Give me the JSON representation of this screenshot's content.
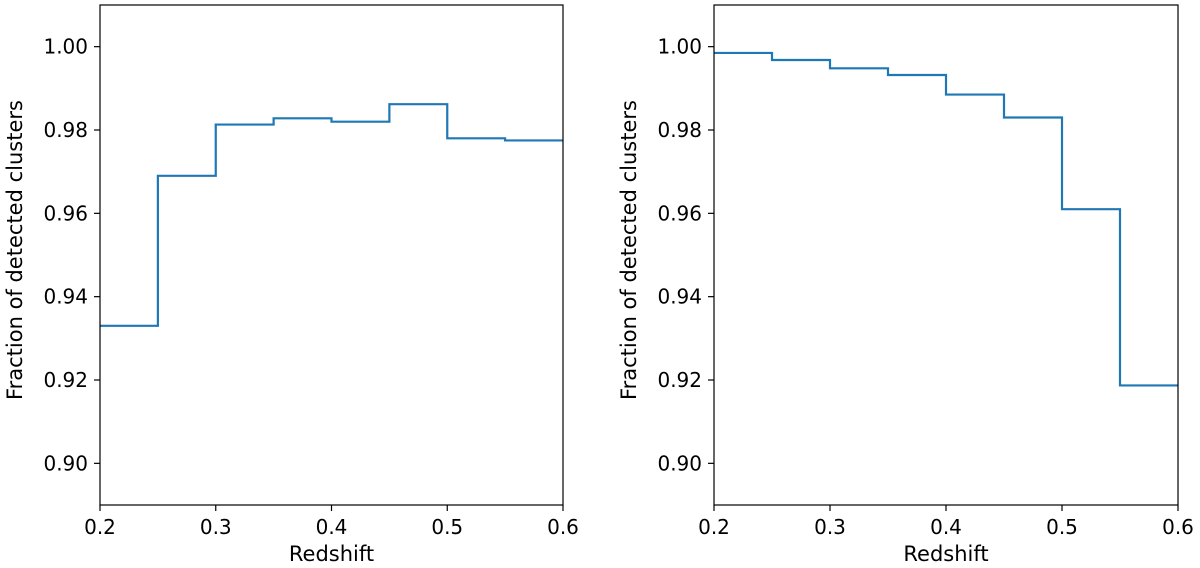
{
  "chart_data": [
    {
      "type": "line",
      "drawstyle": "steps-post",
      "title": "",
      "xlabel": "Redshift",
      "ylabel": "Fraction of detected clusters",
      "xlim": [
        0.2,
        0.6
      ],
      "ylim": [
        0.89,
        1.01
      ],
      "xticks": [
        0.2,
        0.3,
        0.4,
        0.5,
        0.6
      ],
      "xtick_labels": [
        "0.2",
        "0.3",
        "0.4",
        "0.5",
        "0.6"
      ],
      "yticks": [
        0.9,
        0.92,
        0.94,
        0.96,
        0.98,
        1.0
      ],
      "ytick_labels": [
        "0.90",
        "0.92",
        "0.94",
        "0.96",
        "0.98",
        "1.00"
      ],
      "grid": false,
      "color": "#1f77b4",
      "bin_edges": [
        0.2,
        0.25,
        0.3,
        0.35,
        0.4,
        0.45,
        0.5,
        0.55,
        0.6
      ],
      "values": [
        0.933,
        0.969,
        0.9813,
        0.9828,
        0.982,
        0.9862,
        0.978,
        0.9775
      ]
    },
    {
      "type": "line",
      "drawstyle": "steps-post",
      "title": "",
      "xlabel": "Redshift",
      "ylabel": "Fraction of detected clusters",
      "xlim": [
        0.2,
        0.6
      ],
      "ylim": [
        0.89,
        1.01
      ],
      "xticks": [
        0.2,
        0.3,
        0.4,
        0.5,
        0.6
      ],
      "xtick_labels": [
        "0.2",
        "0.3",
        "0.4",
        "0.5",
        "0.6"
      ],
      "yticks": [
        0.9,
        0.92,
        0.94,
        0.96,
        0.98,
        1.0
      ],
      "ytick_labels": [
        "0.90",
        "0.92",
        "0.94",
        "0.96",
        "0.98",
        "1.00"
      ],
      "grid": false,
      "color": "#1f77b4",
      "bin_edges": [
        0.2,
        0.25,
        0.3,
        0.35,
        0.4,
        0.45,
        0.5,
        0.55,
        0.6
      ],
      "values": [
        0.9985,
        0.9968,
        0.9948,
        0.9932,
        0.9885,
        0.983,
        0.961,
        0.9187
      ]
    }
  ]
}
